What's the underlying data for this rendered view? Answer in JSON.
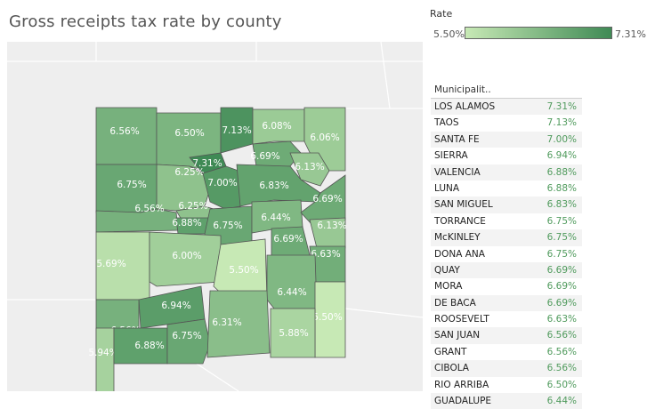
{
  "title": "Gross receipts tax rate by county",
  "legend": {
    "title": "Rate",
    "min_label": "5.50%",
    "max_label": "7.31%",
    "color_low": "#c7e9b5",
    "color_high": "#3f8a55"
  },
  "table": {
    "header": "Municipalit..",
    "rows": [
      {
        "name": "LOS ALAMOS",
        "rate": "7.31%"
      },
      {
        "name": "TAOS",
        "rate": "7.13%"
      },
      {
        "name": "SANTA FE",
        "rate": "7.00%"
      },
      {
        "name": "SIERRA",
        "rate": "6.94%"
      },
      {
        "name": "VALENCIA",
        "rate": "6.88%"
      },
      {
        "name": "LUNA",
        "rate": "6.88%"
      },
      {
        "name": "SAN MIGUEL",
        "rate": "6.83%"
      },
      {
        "name": "TORRANCE",
        "rate": "6.75%"
      },
      {
        "name": "McKINLEY",
        "rate": "6.75%"
      },
      {
        "name": "DONA ANA",
        "rate": "6.75%"
      },
      {
        "name": "QUAY",
        "rate": "6.69%"
      },
      {
        "name": "MORA",
        "rate": "6.69%"
      },
      {
        "name": "DE BACA",
        "rate": "6.69%"
      },
      {
        "name": "ROOSEVELT",
        "rate": "6.63%"
      },
      {
        "name": "SAN JUAN",
        "rate": "6.56%"
      },
      {
        "name": "GRANT",
        "rate": "6.56%"
      },
      {
        "name": "CIBOLA",
        "rate": "6.56%"
      },
      {
        "name": "RIO ARRIBA",
        "rate": "6.50%"
      },
      {
        "name": "GUADALUPE",
        "rate": "6.44%"
      }
    ]
  },
  "chart_data": {
    "type": "heatmap",
    "title": "Gross receipts tax rate by county",
    "color_scale": {
      "min": 5.5,
      "max": 7.31
    },
    "map_labels": [
      {
        "id": "san-juan",
        "rate": 6.56,
        "label": "6.56%"
      },
      {
        "id": "rio-arriba",
        "rate": 6.5,
        "label": "6.50%"
      },
      {
        "id": "taos",
        "rate": 7.13,
        "label": "7.13%"
      },
      {
        "id": "colfax",
        "rate": 6.08,
        "label": "6.08%"
      },
      {
        "id": "union",
        "rate": 6.06,
        "label": "6.06%"
      },
      {
        "id": "mora",
        "rate": 6.69,
        "label": "6.69%"
      },
      {
        "id": "harding",
        "rate": 6.13,
        "label": "6.13%"
      },
      {
        "id": "los-alamos",
        "rate": 7.31,
        "label": "7.31%"
      },
      {
        "id": "sandoval",
        "rate": 6.25,
        "label": "6.25%"
      },
      {
        "id": "santa-fe",
        "rate": 7.0,
        "label": "7.00%"
      },
      {
        "id": "san-miguel",
        "rate": 6.83,
        "label": "6.83%"
      },
      {
        "id": "mckinley",
        "rate": 6.75,
        "label": "6.75%"
      },
      {
        "id": "cibola",
        "rate": 6.56,
        "label": "6.56%"
      },
      {
        "id": "bernalillo",
        "rate": 6.25,
        "label": "6.25%"
      },
      {
        "id": "valencia",
        "rate": 6.88,
        "label": "6.88%"
      },
      {
        "id": "torrance",
        "rate": 6.75,
        "label": "6.75%"
      },
      {
        "id": "guadalupe",
        "rate": 6.44,
        "label": "6.44%"
      },
      {
        "id": "quay",
        "rate": 6.69,
        "label": "6.69%"
      },
      {
        "id": "de-baca",
        "rate": 6.69,
        "label": "6.69%"
      },
      {
        "id": "curry",
        "rate": 6.13,
        "label": "6.13%"
      },
      {
        "id": "roosevelt",
        "rate": 6.63,
        "label": "6.63%"
      },
      {
        "id": "catron",
        "rate": 5.69,
        "label": "5.69%"
      },
      {
        "id": "socorro",
        "rate": 6.0,
        "label": "6.00%"
      },
      {
        "id": "lincoln",
        "rate": 5.5,
        "label": "5.50%"
      },
      {
        "id": "chaves",
        "rate": 6.44,
        "label": "6.44%"
      },
      {
        "id": "lea",
        "rate": 5.5,
        "label": "5.50%"
      },
      {
        "id": "sierra",
        "rate": 6.94,
        "label": "6.94%"
      },
      {
        "id": "grant",
        "rate": 6.56,
        "label": "6.56%"
      },
      {
        "id": "hidalgo",
        "rate": 5.94,
        "label": "5.94%"
      },
      {
        "id": "luna",
        "rate": 6.88,
        "label": "6.88%"
      },
      {
        "id": "dona-ana",
        "rate": 6.75,
        "label": "6.75%"
      },
      {
        "id": "otero",
        "rate": 6.31,
        "label": "6.31%"
      },
      {
        "id": "eddy",
        "rate": 5.88,
        "label": "5.88%"
      }
    ]
  }
}
